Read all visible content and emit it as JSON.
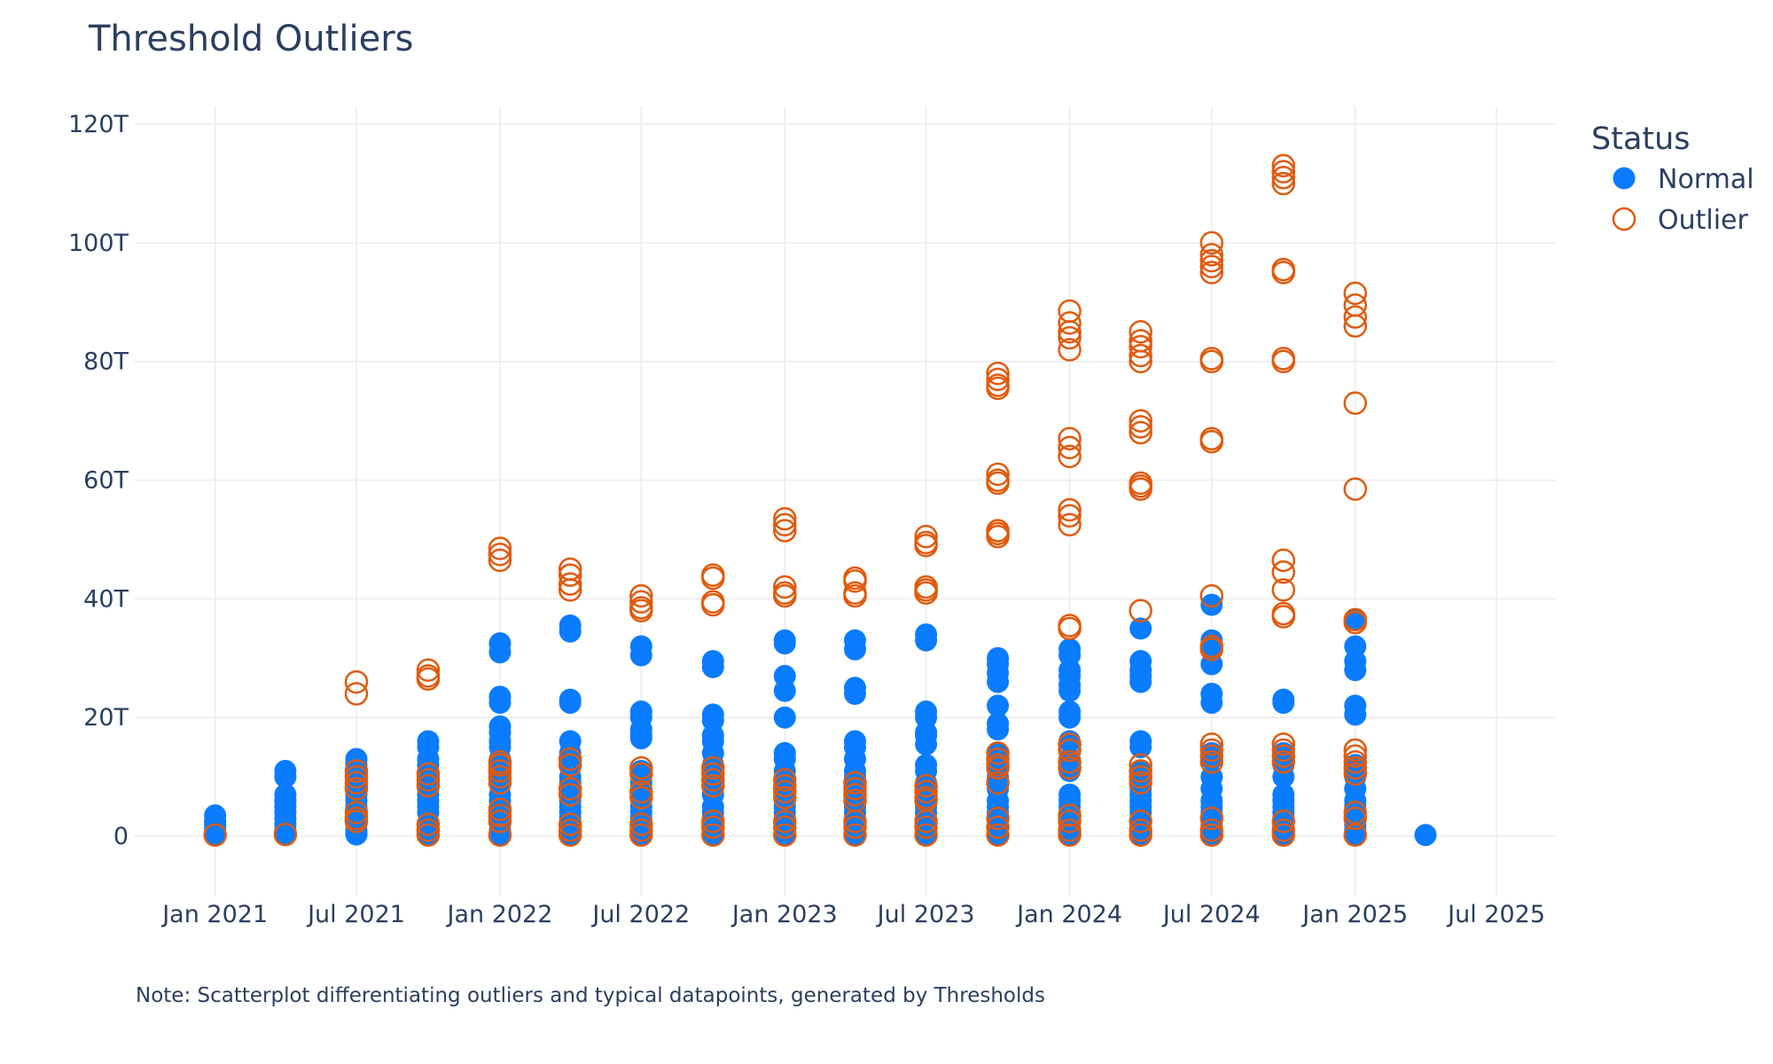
{
  "chart_data": {
    "type": "scatter",
    "title": "Threshold Outliers",
    "xlabel": "",
    "ylabel": "",
    "x_axis": {
      "type": "date",
      "range": [
        "2020-09-20",
        "2025-09-15"
      ],
      "ticks": [
        {
          "value": "2021-01-01",
          "label": "Jan 2021"
        },
        {
          "value": "2021-07-01",
          "label": "Jul 2021"
        },
        {
          "value": "2022-01-01",
          "label": "Jan 2022"
        },
        {
          "value": "2022-07-01",
          "label": "Jul 2022"
        },
        {
          "value": "2023-01-01",
          "label": "Jan 2023"
        },
        {
          "value": "2023-07-01",
          "label": "Jul 2023"
        },
        {
          "value": "2024-01-01",
          "label": "Jan 2024"
        },
        {
          "value": "2024-07-01",
          "label": "Jul 2024"
        },
        {
          "value": "2025-01-01",
          "label": "Jan 2025"
        },
        {
          "value": "2025-07-01",
          "label": "Jul 2025"
        }
      ]
    },
    "y_axis": {
      "range": [
        -10,
        123
      ],
      "ticks": [
        {
          "value": 0,
          "label": "0"
        },
        {
          "value": 20,
          "label": "20T"
        },
        {
          "value": 40,
          "label": "40T"
        },
        {
          "value": 60,
          "label": "60T"
        },
        {
          "value": 80,
          "label": "80T"
        },
        {
          "value": 100,
          "label": "100T"
        },
        {
          "value": 120,
          "label": "120T"
        }
      ]
    },
    "grid": true,
    "legend": {
      "title": "Status",
      "position": "top-right"
    },
    "series": [
      {
        "name": "Normal",
        "marker": "filled-circle",
        "color": "#0a7cff",
        "points": [
          {
            "x": "2021-01-01",
            "y": [
              3.5,
              2.5,
              1.8,
              1.2,
              0.6,
              0.2
            ]
          },
          {
            "x": "2021-04-01",
            "y": [
              11,
              10,
              7,
              6,
              5,
              4,
              3,
              2,
              1,
              0.5,
              0.2
            ]
          },
          {
            "x": "2021-07-01",
            "y": [
              13,
              12,
              10,
              9,
              7,
              6,
              5,
              4,
              2,
              1,
              0.3
            ]
          },
          {
            "x": "2021-10-01",
            "y": [
              16,
              15,
              13,
              12,
              10,
              8,
              7,
              6,
              5,
              4,
              2,
              1,
              0.3
            ]
          },
          {
            "x": "2022-01-01",
            "y": [
              32.5,
              31,
              23.5,
              22.5,
              18.5,
              17.5,
              16,
              15,
              13,
              11,
              9,
              7,
              6,
              5,
              3,
              2,
              1,
              0.3
            ]
          },
          {
            "x": "2022-04-01",
            "y": [
              35.5,
              34.5,
              23,
              22.5,
              16,
              14,
              12,
              10,
              9,
              7,
              6,
              5,
              4,
              3,
              1.5,
              0.3
            ]
          },
          {
            "x": "2022-07-01",
            "y": [
              32,
              30.5,
              21,
              20,
              18,
              17,
              16.5,
              11,
              9,
              7,
              5,
              4,
              3,
              1,
              0.3
            ]
          },
          {
            "x": "2022-10-01",
            "y": [
              29.5,
              28.5,
              20.5,
              19.5,
              17,
              16,
              14,
              12,
              10,
              9,
              7,
              5,
              4,
              3,
              1,
              0.3
            ]
          },
          {
            "x": "2023-01-01",
            "y": [
              33,
              32.5,
              27,
              24.5,
              20,
              14,
              13,
              11,
              9,
              7.5,
              6,
              5,
              4,
              3,
              2,
              1,
              0.3
            ]
          },
          {
            "x": "2023-04-01",
            "y": [
              33,
              31.5,
              25,
              24,
              16,
              15,
              13,
              11,
              10,
              9,
              7,
              5,
              4,
              3,
              1,
              0.3
            ]
          },
          {
            "x": "2023-07-01",
            "y": [
              34,
              33,
              21,
              20,
              17.5,
              17,
              15.5,
              12,
              11,
              9,
              7,
              6,
              5,
              4,
              3,
              1,
              0.3
            ]
          },
          {
            "x": "2023-10-01",
            "y": [
              30,
              29,
              27.5,
              26,
              22,
              19,
              18,
              14,
              12,
              10,
              8,
              6,
              5,
              4,
              2,
              1,
              0.3
            ]
          },
          {
            "x": "2024-01-01",
            "y": [
              31.5,
              30.5,
              28,
              27,
              25.5,
              24.5,
              21,
              20,
              16,
              13,
              11,
              7,
              6,
              5,
              4,
              2,
              1,
              0.3
            ]
          },
          {
            "x": "2024-04-01",
            "y": [
              35,
              29.5,
              28,
              27,
              26,
              16,
              15,
              11,
              10,
              9,
              8,
              7,
              6,
              5,
              4,
              2,
              1,
              0.3
            ]
          },
          {
            "x": "2024-07-01",
            "y": [
              39,
              33,
              32,
              29,
              24,
              22.5,
              14,
              13,
              10,
              8,
              6,
              5,
              4,
              3,
              2,
              1,
              0.3
            ]
          },
          {
            "x": "2024-10-01",
            "y": [
              23,
              22.5,
              14,
              12,
              10,
              7,
              6,
              5,
              4,
              3,
              2,
              1,
              0.3
            ]
          },
          {
            "x": "2025-01-01",
            "y": [
              36.5,
              32,
              29.5,
              28,
              22,
              20.5,
              12,
              10,
              8,
              6,
              5,
              4,
              2,
              1,
              0.3
            ]
          },
          {
            "x": "2025-04-01",
            "y": [
              0.2
            ]
          }
        ]
      },
      {
        "name": "Outlier",
        "marker": "open-circle",
        "color": "#e05a0c",
        "points": [
          {
            "x": "2021-01-01",
            "y": [
              0.2
            ]
          },
          {
            "x": "2021-04-01",
            "y": [
              0.3
            ]
          },
          {
            "x": "2021-07-01",
            "y": [
              26,
              24,
              11,
              10,
              9,
              8,
              4,
              3,
              2.5
            ]
          },
          {
            "x": "2021-10-01",
            "y": [
              28,
              27,
              26.5,
              10.5,
              9.5,
              8.5,
              2,
              1,
              0.2
            ]
          },
          {
            "x": "2022-01-01",
            "y": [
              48.5,
              47.5,
              46.5,
              12.5,
              12,
              11,
              10,
              9,
              4.5,
              3.5,
              2.5,
              0.2
            ]
          },
          {
            "x": "2022-04-01",
            "y": [
              45,
              44,
              42.5,
              41.5,
              13,
              12,
              8,
              7,
              2,
              1,
              0.2
            ]
          },
          {
            "x": "2022-07-01",
            "y": [
              40.5,
              39.5,
              38.5,
              38,
              11.5,
              10.5,
              7.5,
              6.5,
              2,
              1,
              0.2
            ]
          },
          {
            "x": "2022-10-01",
            "y": [
              44,
              43.5,
              39.5,
              39,
              11.5,
              10.5,
              9.5,
              8.5,
              2.5,
              1.5,
              0.2
            ]
          },
          {
            "x": "2023-01-01",
            "y": [
              53.5,
              52.5,
              51.5,
              42,
              41,
              40.5,
              9.5,
              8.5,
              7.5,
              6.5,
              2.5,
              1.5,
              0.2
            ]
          },
          {
            "x": "2023-04-01",
            "y": [
              43.5,
              43,
              41,
              40.5,
              9,
              8,
              7,
              6,
              2.5,
              1.5,
              0.2
            ]
          },
          {
            "x": "2023-07-01",
            "y": [
              50.5,
              49.5,
              49,
              42,
              41.5,
              41,
              8.5,
              7.5,
              6.5,
              6,
              2.5,
              1.5,
              0.2
            ]
          },
          {
            "x": "2023-10-01",
            "y": [
              78,
              77,
              76,
              75.5,
              61,
              60,
              59.5,
              51.5,
              51,
              50.5,
              14,
              13,
              12,
              11.5,
              9,
              3,
              1.5,
              0.2
            ]
          },
          {
            "x": "2024-01-01",
            "y": [
              88.5,
              86.5,
              85,
              84,
              82,
              67,
              65.5,
              64,
              55,
              54,
              52.5,
              35.5,
              35,
              15.5,
              14.5,
              12.5,
              11.5,
              3.5,
              2.5,
              1,
              0.2
            ]
          },
          {
            "x": "2024-04-01",
            "y": [
              85,
              83.5,
              82.5,
              81,
              80,
              70,
              69,
              68,
              59.5,
              59,
              58.5,
              38,
              12,
              11,
              10,
              9,
              2.5,
              1,
              0.2
            ]
          },
          {
            "x": "2024-07-01",
            "y": [
              100,
              98,
              97,
              96,
              95,
              80.5,
              80,
              67,
              66.5,
              40.5,
              32,
              31.5,
              15.5,
              14.5,
              13.5,
              12.5,
              3,
              1,
              0.2
            ]
          },
          {
            "x": "2024-10-01",
            "y": [
              113,
              112,
              111,
              110,
              95.5,
              95,
              80.5,
              80,
              46.5,
              44.5,
              41.5,
              37.5,
              37,
              15.5,
              14.5,
              13.5,
              12.5,
              2.5,
              1,
              0.2
            ]
          },
          {
            "x": "2025-01-01",
            "y": [
              91.5,
              89.5,
              87.5,
              86,
              73,
              58.5,
              36.5,
              36,
              14.5,
              13.5,
              12.5,
              11.5,
              10.5,
              4,
              3,
              0.2
            ]
          }
        ]
      }
    ],
    "annotations": [
      "Note: Scatterplot differentiating outliers and typical datapoints, generated by Thresholds"
    ]
  }
}
